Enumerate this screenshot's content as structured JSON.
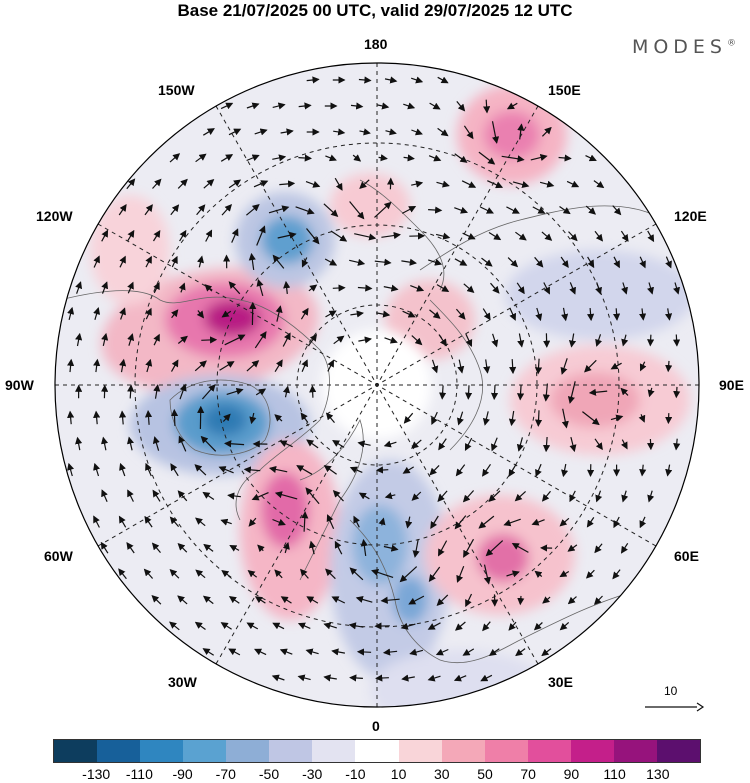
{
  "title": "Base 21/07/2025 00 UTC, valid 29/07/2025 12 UTC",
  "brand": "MODES",
  "brand_mark": "®",
  "longitude_labels": {
    "lon_180": "180",
    "lon_150e": "150E",
    "lon_120e": "120E",
    "lon_90e": "90E",
    "lon_60e": "60E",
    "lon_30e": "30E",
    "lon_0": "0",
    "lon_30w": "30W",
    "lon_60w": "60W",
    "lon_90w": "90W",
    "lon_120w": "120W",
    "lon_150w": "150W"
  },
  "vector_reference": {
    "value": "10"
  },
  "colorbar": {
    "colors": [
      "#0d3d5e",
      "#17609a",
      "#2f86c0",
      "#5aa2d1",
      "#8eaed6",
      "#bfc6e4",
      "#e3e3f1",
      "#ffffff",
      "#f9d5d9",
      "#f4a8b8",
      "#ef7fa8",
      "#e24f9c",
      "#c41f8a",
      "#96137c",
      "#5c0f6e"
    ],
    "tick_labels": [
      "-130",
      "-110",
      "-90",
      "-70",
      "-50",
      "-30",
      "-10",
      "10",
      "30",
      "50",
      "70",
      "90",
      "110",
      "130"
    ]
  },
  "anomaly_centers": [
    {
      "name": "high-over-north-canada",
      "sign": "positive",
      "label": "90"
    },
    {
      "name": "low-over-hudson-bay",
      "sign": "negative",
      "label": "-90"
    },
    {
      "name": "low-over-alaska",
      "sign": "negative",
      "label": "-70"
    },
    {
      "name": "high-over-east-siberia",
      "sign": "positive",
      "label": "70"
    },
    {
      "name": "high-over-greenland-sea",
      "sign": "positive",
      "label": "70"
    },
    {
      "name": "low-over-scandinavia",
      "sign": "negative",
      "label": "-50"
    },
    {
      "name": "high-over-west-russia",
      "sign": "positive",
      "label": "70"
    },
    {
      "name": "high-over-central-asia",
      "sign": "positive",
      "label": "50"
    }
  ]
}
